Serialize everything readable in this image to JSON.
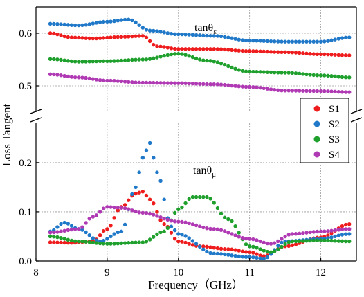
{
  "chart_data": {
    "type": "scatter",
    "xlabel": "Frequency（GHz）",
    "ylabel": "Loss Tangent",
    "xlim": [
      8.0,
      12.5
    ],
    "x_ticks": [
      8,
      9,
      10,
      11,
      12
    ],
    "x_tick_labels": [
      "8",
      "9",
      "10",
      "11",
      "12"
    ],
    "ylim_upper": [
      0.45,
      0.65
    ],
    "y_ticks_upper": [
      0.5,
      0.6
    ],
    "y_tick_labels_upper": [
      "0.5",
      "0.6"
    ],
    "ylim_lower": [
      0.0,
      0.28
    ],
    "y_ticks_lower": [
      0.0,
      0.1,
      0.2
    ],
    "y_tick_labels_lower": [
      "0.0",
      "0.1",
      "0.2"
    ],
    "axis_break": "between 0.28 and 0.45",
    "grid": true,
    "legend_position": "right",
    "annotations": [
      {
        "main": "tanθ",
        "sub": "ε"
      },
      {
        "main": "tanθ",
        "sub": "μ"
      }
    ],
    "series": [
      {
        "name": "S1",
        "color": "#ee1c1c",
        "upper": {
          "x": [
            8.2,
            8.5,
            8.8,
            9.2,
            9.5,
            9.7,
            10.0,
            10.5,
            11.0,
            11.5,
            12.0,
            12.4
          ],
          "y": [
            0.6,
            0.592,
            0.59,
            0.593,
            0.595,
            0.575,
            0.57,
            0.57,
            0.566,
            0.564,
            0.56,
            0.558
          ]
        },
        "lower": {
          "x": [
            8.2,
            8.5,
            8.8,
            9.0,
            9.2,
            9.4,
            9.5,
            9.6,
            9.8,
            10.0,
            10.3,
            10.7,
            11.0,
            11.2,
            11.5,
            12.0,
            12.4
          ],
          "y": [
            0.038,
            0.037,
            0.04,
            0.065,
            0.11,
            0.137,
            0.141,
            0.125,
            0.075,
            0.04,
            0.03,
            0.024,
            0.018,
            0.01,
            0.03,
            0.048,
            0.075
          ]
        }
      },
      {
        "name": "S2",
        "color": "#1f78c8",
        "upper": {
          "x": [
            8.2,
            8.6,
            9.0,
            9.3,
            9.6,
            10.0,
            10.5,
            11.0,
            11.5,
            12.0,
            12.4
          ],
          "y": [
            0.618,
            0.615,
            0.622,
            0.626,
            0.605,
            0.598,
            0.595,
            0.586,
            0.584,
            0.584,
            0.592
          ]
        },
        "lower": {
          "x": [
            8.2,
            8.4,
            8.6,
            8.9,
            9.2,
            9.4,
            9.5,
            9.6,
            9.7,
            9.9,
            10.0,
            10.5,
            11.0,
            11.2,
            11.5,
            12.0,
            12.4
          ],
          "y": [
            0.06,
            0.078,
            0.065,
            0.04,
            0.06,
            0.15,
            0.21,
            0.24,
            0.18,
            0.07,
            0.055,
            0.015,
            0.008,
            0.005,
            0.04,
            0.045,
            0.055
          ]
        }
      },
      {
        "name": "S3",
        "color": "#1fa02d",
        "upper": {
          "x": [
            8.2,
            8.6,
            9.0,
            9.5,
            10.0,
            10.4,
            11.0,
            11.5,
            12.0,
            12.4
          ],
          "y": [
            0.551,
            0.546,
            0.547,
            0.55,
            0.561,
            0.548,
            0.527,
            0.525,
            0.52,
            0.516
          ]
        },
        "lower": {
          "x": [
            8.2,
            8.6,
            9.0,
            9.5,
            9.8,
            10.0,
            10.2,
            10.4,
            10.7,
            11.0,
            11.3,
            11.6,
            12.0,
            12.4
          ],
          "y": [
            0.05,
            0.04,
            0.035,
            0.038,
            0.06,
            0.105,
            0.13,
            0.13,
            0.085,
            0.03,
            0.018,
            0.04,
            0.042,
            0.04
          ]
        }
      },
      {
        "name": "S4",
        "color": "#b03ab4",
        "upper": {
          "x": [
            8.2,
            8.6,
            9.0,
            9.5,
            10.0,
            10.5,
            11.0,
            11.5,
            12.0,
            12.4
          ],
          "y": [
            0.522,
            0.516,
            0.51,
            0.506,
            0.505,
            0.503,
            0.498,
            0.491,
            0.49,
            0.488
          ]
        },
        "lower": {
          "x": [
            8.2,
            8.6,
            8.8,
            9.0,
            9.2,
            9.5,
            10.0,
            10.5,
            11.0,
            11.3,
            11.6,
            12.0,
            12.4
          ],
          "y": [
            0.058,
            0.065,
            0.09,
            0.11,
            0.108,
            0.098,
            0.08,
            0.065,
            0.045,
            0.035,
            0.055,
            0.06,
            0.065
          ]
        }
      }
    ]
  }
}
